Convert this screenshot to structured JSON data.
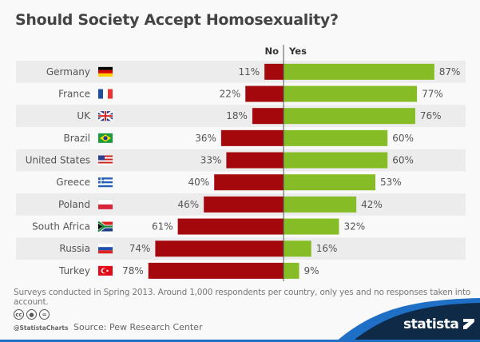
{
  "chart_data": {
    "type": "bar",
    "title": "Should Society Accept Homosexuality?",
    "categories": [
      "Germany",
      "France",
      "UK",
      "Brazil",
      "United States",
      "Greece",
      "Poland",
      "South Africa",
      "Russia",
      "Turkey"
    ],
    "flags": [
      "germany-flag",
      "france-flag",
      "uk-flag",
      "brazil-flag",
      "us-flag",
      "greece-flag",
      "poland-flag",
      "south-africa-flag",
      "russia-flag",
      "turkey-flag"
    ],
    "series": [
      {
        "name": "No",
        "color": "#a5080c",
        "values": [
          11,
          22,
          18,
          36,
          33,
          40,
          46,
          61,
          74,
          78
        ]
      },
      {
        "name": "Yes",
        "color": "#86bc25",
        "values": [
          87,
          77,
          76,
          60,
          60,
          53,
          42,
          32,
          16,
          9
        ]
      }
    ],
    "value_suffix": "%",
    "orientation": "horizontal-diverging",
    "row_stripes": "#ececec"
  },
  "footer": {
    "note": "Surveys conducted in Spring 2013. Around 1,000 respondents per country, only yes and no responses taken into account.",
    "handle": "@StatistaCharts",
    "source": "Source: Pew Research Center",
    "brand": "statista",
    "license_icons": [
      "cc-icon",
      "by-icon",
      "nd-icon"
    ],
    "cc_text": "cc",
    "nd_text": "="
  }
}
